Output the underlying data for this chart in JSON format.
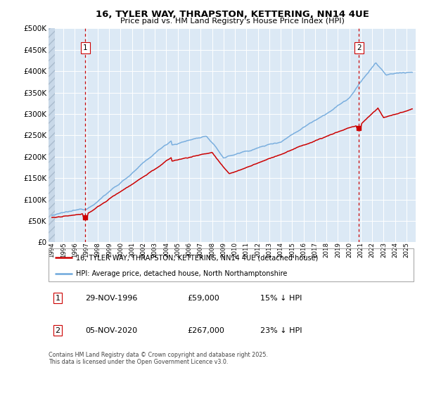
{
  "title_line1": "16, TYLER WAY, THRAPSTON, KETTERING, NN14 4UE",
  "title_line2": "Price paid vs. HM Land Registry's House Price Index (HPI)",
  "legend_line1": "16, TYLER WAY, THRAPSTON, KETTERING, NN14 4UE (detached house)",
  "legend_line2": "HPI: Average price, detached house, North Northamptonshire",
  "marker1_date": "29-NOV-1996",
  "marker1_price": "£59,000",
  "marker1_hpi": "15% ↓ HPI",
  "marker2_date": "05-NOV-2020",
  "marker2_price": "£267,000",
  "marker2_hpi": "23% ↓ HPI",
  "footnote": "Contains HM Land Registry data © Crown copyright and database right 2025.\nThis data is licensed under the Open Government Licence v3.0.",
  "red_color": "#cc0000",
  "blue_color": "#6fa8dc",
  "bg_color": "#dce9f5",
  "hatch_area_color": "#c8d8e8",
  "grid_color": "#ffffff",
  "vline_color": "#cc0000",
  "ylim_max": 500000,
  "xlim_start": 1993.7,
  "xlim_end": 2025.8,
  "t1": 1996.9167,
  "t2": 2020.8417
}
